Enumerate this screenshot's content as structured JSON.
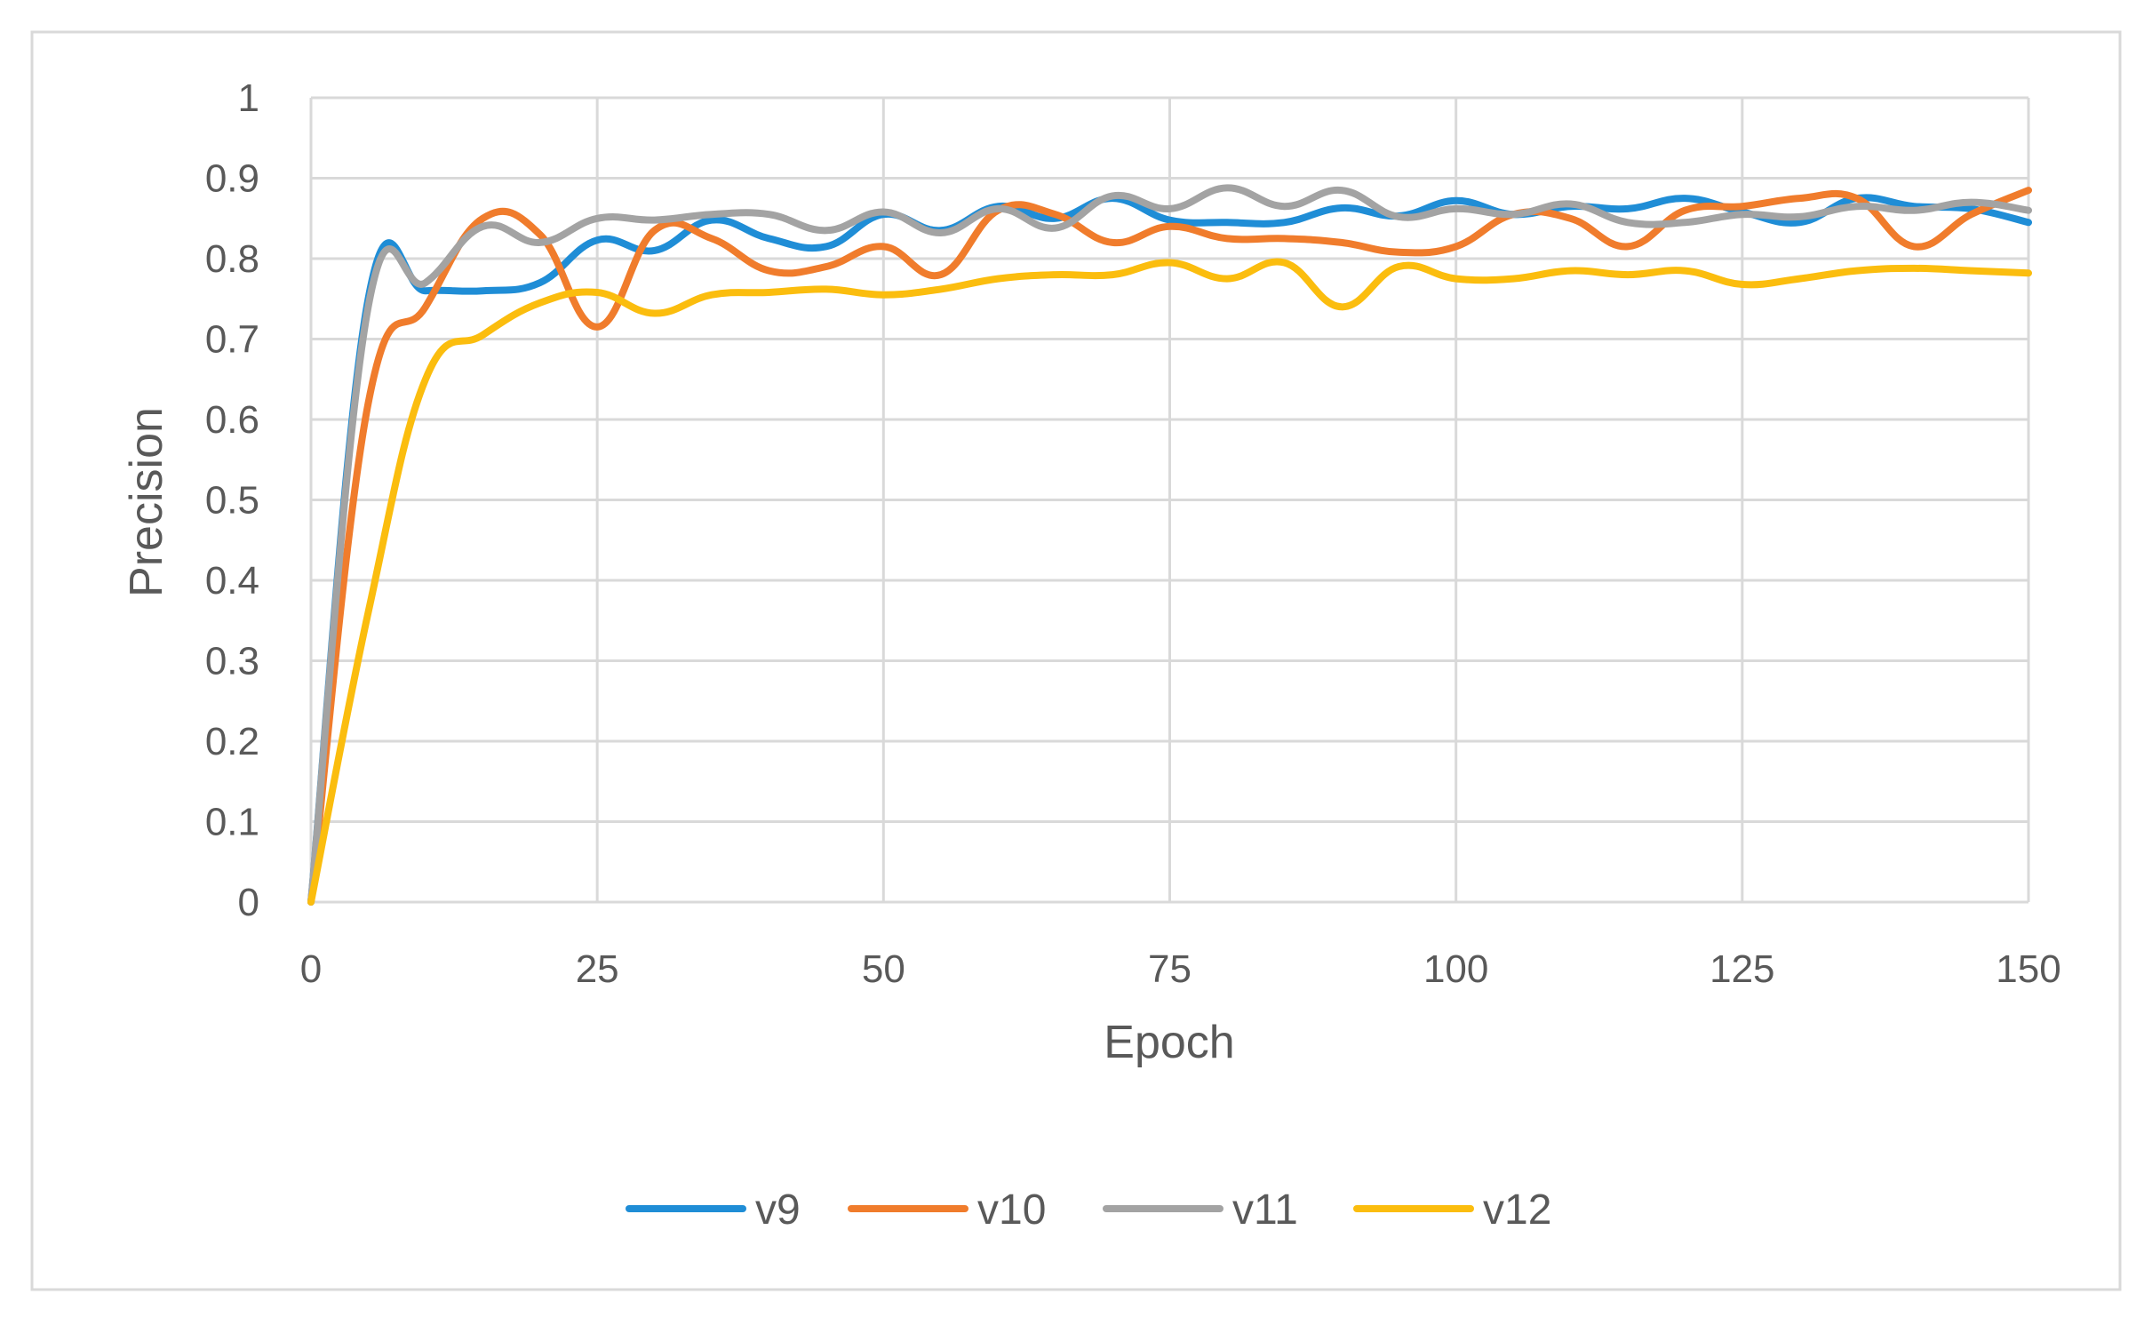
{
  "chart_data": {
    "type": "line",
    "title": "",
    "xlabel": "Epoch",
    "ylabel": "Precision",
    "xlim": [
      0,
      150
    ],
    "ylim": [
      0,
      1
    ],
    "x_ticks": [
      "0",
      "25",
      "50",
      "75",
      "100",
      "125",
      "150"
    ],
    "y_ticks": [
      "0",
      "0.1",
      "0.2",
      "0.3",
      "0.4",
      "0.5",
      "0.6",
      "0.7",
      "0.8",
      "0.9",
      "1"
    ],
    "grid": true,
    "legend_position": "bottom",
    "series": [
      {
        "name": "v9",
        "color": "#1f8dd6",
        "points": [
          [
            0,
            0
          ],
          [
            5,
            0.75
          ],
          [
            10,
            0.76
          ],
          [
            15,
            0.76
          ],
          [
            20,
            0.77
          ],
          [
            25,
            0.823
          ],
          [
            30,
            0.81
          ],
          [
            35,
            0.848
          ],
          [
            40,
            0.825
          ],
          [
            45,
            0.815
          ],
          [
            50,
            0.855
          ],
          [
            55,
            0.835
          ],
          [
            60,
            0.865
          ],
          [
            65,
            0.85
          ],
          [
            70,
            0.875
          ],
          [
            75,
            0.848
          ],
          [
            80,
            0.845
          ],
          [
            85,
            0.845
          ],
          [
            90,
            0.863
          ],
          [
            95,
            0.853
          ],
          [
            100,
            0.872
          ],
          [
            105,
            0.855
          ],
          [
            110,
            0.865
          ],
          [
            115,
            0.862
          ],
          [
            120,
            0.875
          ],
          [
            125,
            0.858
          ],
          [
            130,
            0.845
          ],
          [
            135,
            0.875
          ],
          [
            140,
            0.865
          ],
          [
            145,
            0.862
          ],
          [
            150,
            0.845
          ]
        ]
      },
      {
        "name": "v10",
        "color": "#f07c2c",
        "points": [
          [
            0,
            0
          ],
          [
            5,
            0.62
          ],
          [
            10,
            0.74
          ],
          [
            15,
            0.85
          ],
          [
            20,
            0.83
          ],
          [
            25,
            0.715
          ],
          [
            30,
            0.835
          ],
          [
            35,
            0.825
          ],
          [
            40,
            0.785
          ],
          [
            45,
            0.79
          ],
          [
            50,
            0.815
          ],
          [
            55,
            0.78
          ],
          [
            60,
            0.86
          ],
          [
            65,
            0.855
          ],
          [
            70,
            0.82
          ],
          [
            75,
            0.84
          ],
          [
            80,
            0.825
          ],
          [
            85,
            0.825
          ],
          [
            90,
            0.82
          ],
          [
            95,
            0.808
          ],
          [
            100,
            0.815
          ],
          [
            105,
            0.855
          ],
          [
            110,
            0.85
          ],
          [
            115,
            0.815
          ],
          [
            120,
            0.86
          ],
          [
            125,
            0.865
          ],
          [
            130,
            0.875
          ],
          [
            135,
            0.875
          ],
          [
            140,
            0.815
          ],
          [
            145,
            0.855
          ],
          [
            150,
            0.885
          ]
        ]
      },
      {
        "name": "v11",
        "color": "#a3a3a3",
        "points": [
          [
            0,
            0
          ],
          [
            5,
            0.74
          ],
          [
            10,
            0.77
          ],
          [
            15,
            0.84
          ],
          [
            20,
            0.82
          ],
          [
            25,
            0.85
          ],
          [
            30,
            0.848
          ],
          [
            35,
            0.855
          ],
          [
            40,
            0.855
          ],
          [
            45,
            0.835
          ],
          [
            50,
            0.858
          ],
          [
            55,
            0.832
          ],
          [
            60,
            0.862
          ],
          [
            65,
            0.838
          ],
          [
            70,
            0.878
          ],
          [
            75,
            0.862
          ],
          [
            80,
            0.888
          ],
          [
            85,
            0.865
          ],
          [
            90,
            0.885
          ],
          [
            95,
            0.852
          ],
          [
            100,
            0.862
          ],
          [
            105,
            0.855
          ],
          [
            110,
            0.868
          ],
          [
            115,
            0.845
          ],
          [
            120,
            0.845
          ],
          [
            125,
            0.855
          ],
          [
            130,
            0.852
          ],
          [
            135,
            0.865
          ],
          [
            140,
            0.86
          ],
          [
            145,
            0.87
          ],
          [
            150,
            0.86
          ]
        ]
      },
      {
        "name": "v12",
        "color": "#fbbd0e",
        "points": [
          [
            0,
            0
          ],
          [
            5,
            0.36
          ],
          [
            10,
            0.65
          ],
          [
            15,
            0.705
          ],
          [
            20,
            0.745
          ],
          [
            25,
            0.758
          ],
          [
            30,
            0.732
          ],
          [
            35,
            0.755
          ],
          [
            40,
            0.758
          ],
          [
            45,
            0.762
          ],
          [
            50,
            0.755
          ],
          [
            55,
            0.762
          ],
          [
            60,
            0.775
          ],
          [
            65,
            0.78
          ],
          [
            70,
            0.78
          ],
          [
            75,
            0.795
          ],
          [
            80,
            0.775
          ],
          [
            85,
            0.795
          ],
          [
            90,
            0.74
          ],
          [
            95,
            0.79
          ],
          [
            100,
            0.775
          ],
          [
            105,
            0.775
          ],
          [
            110,
            0.785
          ],
          [
            115,
            0.78
          ],
          [
            120,
            0.785
          ],
          [
            125,
            0.768
          ],
          [
            130,
            0.775
          ],
          [
            135,
            0.785
          ],
          [
            140,
            0.788
          ],
          [
            145,
            0.785
          ],
          [
            150,
            0.782
          ]
        ]
      }
    ]
  }
}
